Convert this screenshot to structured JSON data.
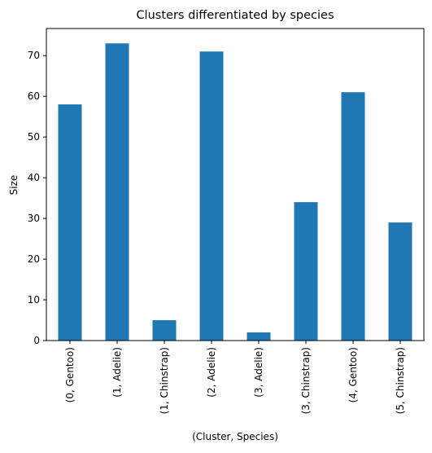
{
  "chart_data": {
    "type": "bar",
    "title": "Clusters differentiated by species",
    "xlabel": "(Cluster, Species)",
    "ylabel": "Size",
    "categories": [
      "(0, Gentoo)",
      "(1, Adelie)",
      "(1, Chinstrap)",
      "(2, Adelie)",
      "(3, Adelie)",
      "(3, Chinstrap)",
      "(4, Gentoo)",
      "(5, Chinstrap)"
    ],
    "values": [
      58,
      73,
      5,
      71,
      2,
      34,
      61,
      29
    ],
    "ylim": [
      0,
      76.65
    ],
    "yticks": [
      "0",
      "10",
      "20",
      "30",
      "40",
      "50",
      "60",
      "70"
    ],
    "grid": false,
    "legend": "none",
    "bar_color": "#1f77b4"
  }
}
